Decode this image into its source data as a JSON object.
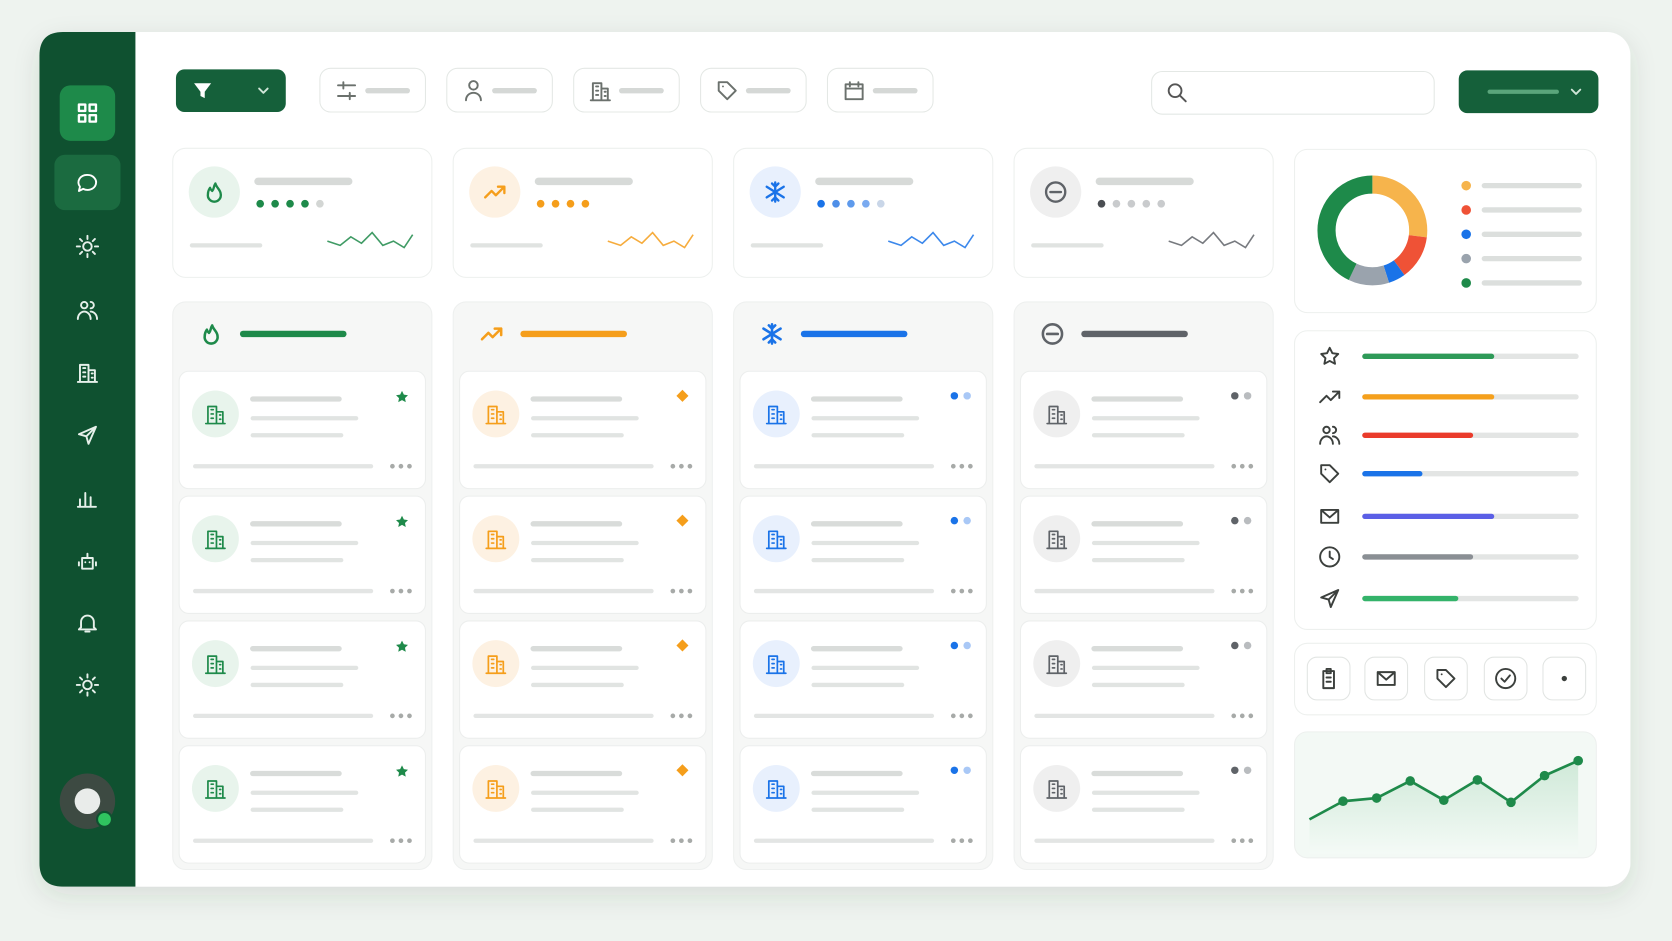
{
  "donut": {
    "values": [
      27,
      13,
      5,
      12,
      43
    ],
    "colors": [
      "#f6b44c",
      "#ef5236",
      "#1a73e8",
      "#9aa3ad",
      "#1e8a4a"
    ]
  },
  "metrics": {
    "values": [
      60,
      60,
      50,
      26,
      60,
      50,
      43
    ],
    "colors": [
      "#2e9a58",
      "#f5a01c",
      "#ea3b2b",
      "#1a73e8",
      "#5b5fe6",
      "#8a8f94",
      "#34b36a"
    ],
    "xlim": [
      0,
      100
    ]
  },
  "trend": {
    "values": [
      32,
      49,
      52,
      68,
      50,
      69,
      48,
      73,
      87
    ],
    "ylim": [
      0,
      100
    ]
  }
}
